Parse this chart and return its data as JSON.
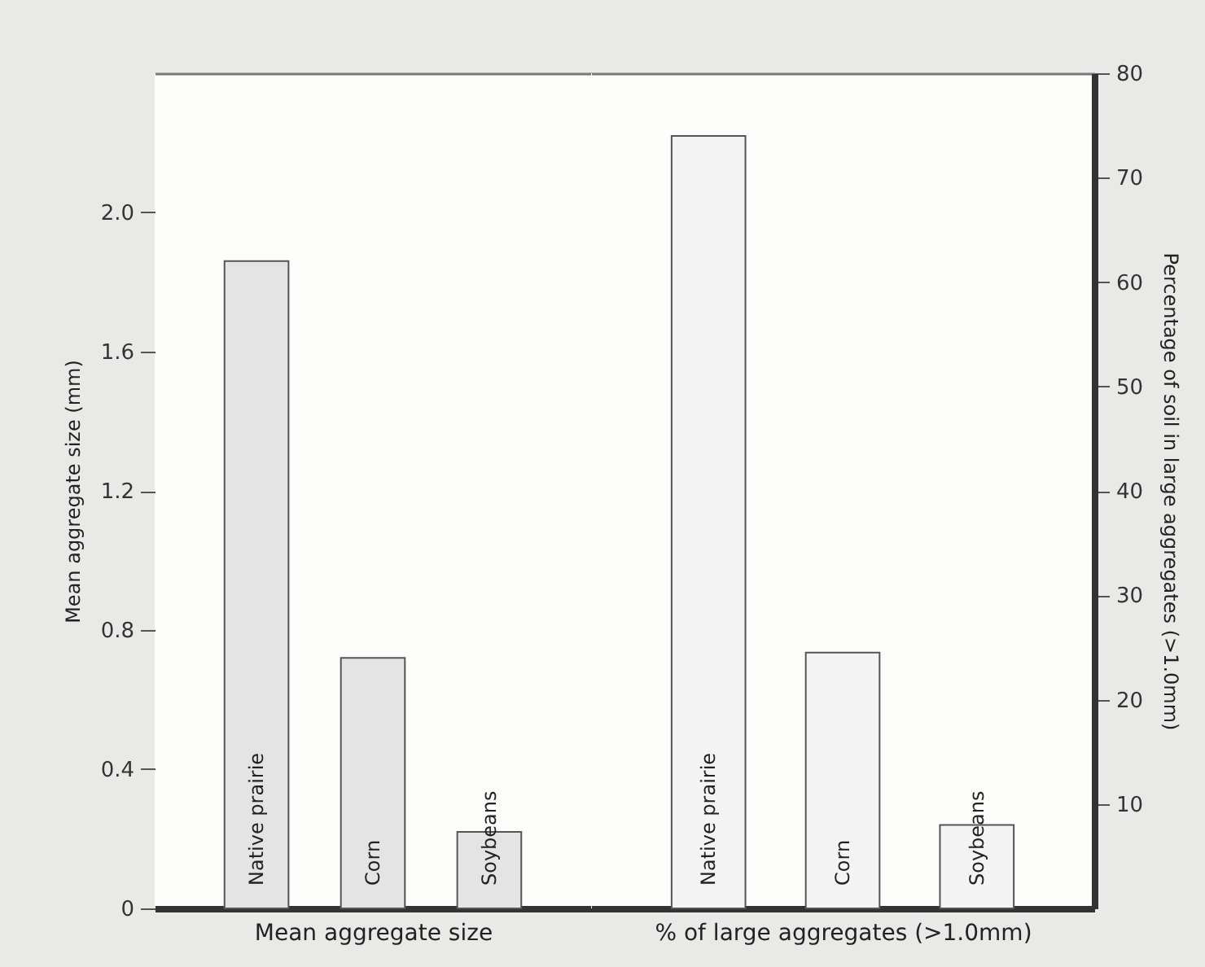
{
  "chart_data": [
    {
      "type": "bar",
      "xlabel": "Mean aggregate size",
      "ylabel": "Mean aggregate size (mm)",
      "categories": [
        "Native prairie",
        "Corn",
        "Soybeans"
      ],
      "series": [
        {
          "color": "#e4e4e4",
          "values": [
            1.86,
            0.72,
            0.22
          ]
        }
      ],
      "ylim": [
        0,
        2.4
      ],
      "yticks": [
        0,
        0.4,
        0.8,
        1.2,
        1.6,
        {
          "value": 2,
          "label": "2.0"
        }
      ]
    },
    {
      "type": "bar",
      "xlabel": "% of large aggregates (>1.0mm)",
      "y2label": "Percentage of soil in large aggregates (>1.0mm)",
      "categories": [
        "Native prairie",
        "Corn",
        "Soybeans"
      ],
      "series": [
        {
          "color": "#f4f4f4",
          "axis": "y2",
          "values": [
            74,
            24.5,
            8
          ]
        }
      ],
      "y2lim": [
        0,
        80
      ],
      "y2ticks": [
        10,
        20,
        30,
        40,
        50,
        60,
        70,
        80
      ]
    }
  ]
}
